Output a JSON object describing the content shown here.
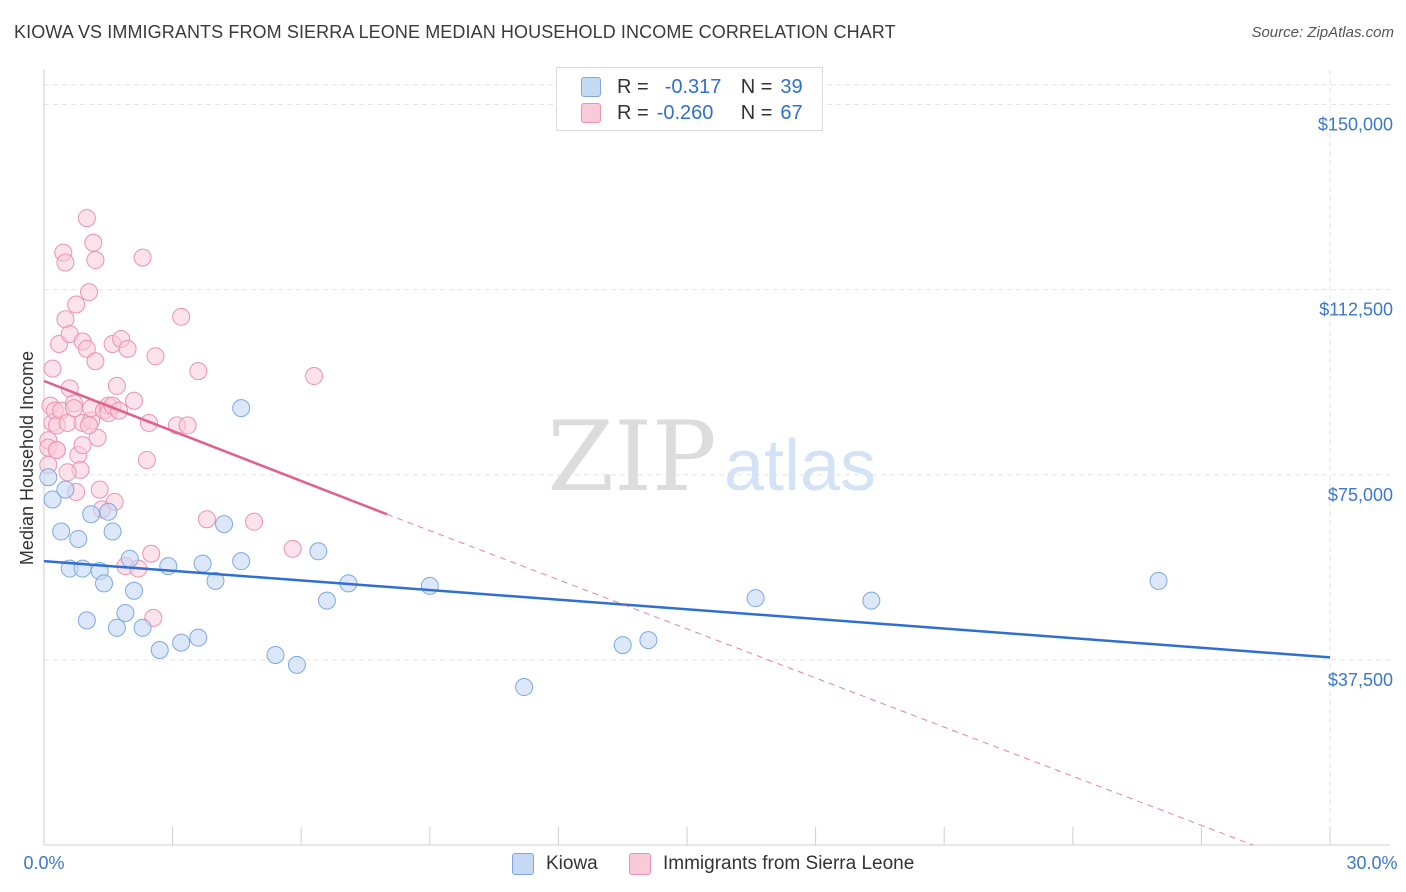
{
  "header": {
    "title": "KIOWA VS IMMIGRANTS FROM SIERRA LEONE MEDIAN HOUSEHOLD INCOME CORRELATION CHART",
    "source": "Source: ZipAtlas.com"
  },
  "legend": {
    "kiowa": {
      "r_label": "R =",
      "r_value": "-0.317",
      "n_label": "N =",
      "n_value": "39"
    },
    "sierra": {
      "r_label": "R =",
      "r_value": "-0.260",
      "n_label": "N =",
      "n_value": "67"
    }
  },
  "watermark": {
    "zip": "ZIP",
    "atlas": "atlas"
  },
  "colors": {
    "kiowa_fill": "#c5d9f5",
    "kiowa_stroke": "#7fa8e0",
    "kiowa_line": "#2f6fd0",
    "sierra_fill": "#f9cad8",
    "sierra_stroke": "#eb93b0",
    "sierra_line": "#e0628c",
    "axis_label": "#3a78d0",
    "grid": "#e3e3e3"
  },
  "chart_data": {
    "type": "scatter",
    "title": "KIOWA VS IMMIGRANTS FROM SIERRA LEONE MEDIAN HOUSEHOLD INCOME CORRELATION CHART",
    "xlabel": "",
    "ylabel": "Median Household Income",
    "xlim": [
      0,
      30
    ],
    "ylim": [
      0,
      157000
    ],
    "x_tick_labels": [
      "0.0%",
      "30.0%"
    ],
    "y_ticks": [
      37500,
      75000,
      112500,
      150000
    ],
    "y_tick_labels": [
      "$37,500",
      "$75,000",
      "$112,500",
      "$150,000"
    ],
    "grid": true,
    "legend_position": "top-center",
    "series": [
      {
        "name": "Kiowa",
        "r": -0.317,
        "n": 39,
        "trend": {
          "x": [
            0,
            30
          ],
          "y": [
            57500,
            38000
          ]
        },
        "points": [
          [
            0.1,
            74500
          ],
          [
            0.2,
            70000
          ],
          [
            0.4,
            63500
          ],
          [
            0.5,
            72000
          ],
          [
            0.6,
            56000
          ],
          [
            0.8,
            62000
          ],
          [
            0.9,
            56000
          ],
          [
            1.0,
            45500
          ],
          [
            1.1,
            67000
          ],
          [
            1.3,
            55500
          ],
          [
            1.4,
            53000
          ],
          [
            1.5,
            67500
          ],
          [
            1.6,
            63500
          ],
          [
            1.7,
            44000
          ],
          [
            1.9,
            47000
          ],
          [
            2.0,
            58000
          ],
          [
            2.1,
            51500
          ],
          [
            2.3,
            44000
          ],
          [
            2.7,
            39500
          ],
          [
            2.9,
            56500
          ],
          [
            3.2,
            41000
          ],
          [
            3.6,
            42000
          ],
          [
            3.7,
            57000
          ],
          [
            4.0,
            53500
          ],
          [
            4.2,
            65000
          ],
          [
            4.6,
            57500
          ],
          [
            4.6,
            88500
          ],
          [
            5.4,
            38500
          ],
          [
            5.9,
            36500
          ],
          [
            6.4,
            59500
          ],
          [
            6.6,
            49500
          ],
          [
            7.1,
            53000
          ],
          [
            9.0,
            52500
          ],
          [
            11.2,
            32000
          ],
          [
            13.5,
            40500
          ],
          [
            14.1,
            41500
          ],
          [
            16.6,
            50000
          ],
          [
            19.3,
            49500
          ],
          [
            26.0,
            53500
          ]
        ]
      },
      {
        "name": "Immigrants from Sierra Leone",
        "r": -0.26,
        "n": 67,
        "trend": {
          "x": [
            0,
            8
          ],
          "y": [
            94000,
            67000
          ]
        },
        "trend_extended": {
          "x": [
            8,
            28.2
          ],
          "y": [
            67000,
            0
          ]
        },
        "points": [
          [
            0.1,
            82000
          ],
          [
            0.1,
            80500
          ],
          [
            0.1,
            77000
          ],
          [
            0.15,
            89000
          ],
          [
            0.2,
            96500
          ],
          [
            0.2,
            85500
          ],
          [
            0.25,
            88000
          ],
          [
            0.3,
            80000
          ],
          [
            0.3,
            85000
          ],
          [
            0.35,
            101500
          ],
          [
            0.4,
            88000
          ],
          [
            0.45,
            120000
          ],
          [
            0.5,
            118000
          ],
          [
            0.5,
            106500
          ],
          [
            0.55,
            85500
          ],
          [
            0.6,
            103500
          ],
          [
            0.6,
            92500
          ],
          [
            0.7,
            89500
          ],
          [
            0.7,
            88500
          ],
          [
            0.75,
            109500
          ],
          [
            0.75,
            71500
          ],
          [
            0.8,
            79000
          ],
          [
            0.85,
            76000
          ],
          [
            0.9,
            102000
          ],
          [
            0.9,
            85500
          ],
          [
            0.9,
            81000
          ],
          [
            1.0,
            127000
          ],
          [
            1.0,
            100500
          ],
          [
            1.05,
            112000
          ],
          [
            1.1,
            86000
          ],
          [
            1.1,
            88500
          ],
          [
            1.15,
            122000
          ],
          [
            1.2,
            118500
          ],
          [
            1.2,
            98000
          ],
          [
            1.25,
            82500
          ],
          [
            1.3,
            72000
          ],
          [
            1.35,
            68000
          ],
          [
            1.4,
            88000
          ],
          [
            1.5,
            89000
          ],
          [
            1.5,
            87500
          ],
          [
            1.6,
            101500
          ],
          [
            1.6,
            89000
          ],
          [
            1.65,
            69500
          ],
          [
            1.7,
            93000
          ],
          [
            1.75,
            88000
          ],
          [
            1.8,
            102500
          ],
          [
            1.9,
            56500
          ],
          [
            1.95,
            100500
          ],
          [
            2.1,
            90000
          ],
          [
            2.2,
            56000
          ],
          [
            2.3,
            119000
          ],
          [
            2.4,
            78000
          ],
          [
            2.45,
            85500
          ],
          [
            2.5,
            59000
          ],
          [
            2.55,
            46000
          ],
          [
            2.6,
            99000
          ],
          [
            3.1,
            85000
          ],
          [
            3.2,
            107000
          ],
          [
            3.35,
            85000
          ],
          [
            3.6,
            96000
          ],
          [
            3.8,
            66000
          ],
          [
            4.9,
            65500
          ],
          [
            5.8,
            60000
          ],
          [
            6.3,
            95000
          ],
          [
            0.3,
            80000
          ],
          [
            0.55,
            75500
          ],
          [
            1.05,
            85000
          ]
        ]
      }
    ]
  },
  "bottom_legend": {
    "kiowa_label": "Kiowa",
    "sierra_label": "Immigrants from Sierra Leone"
  }
}
